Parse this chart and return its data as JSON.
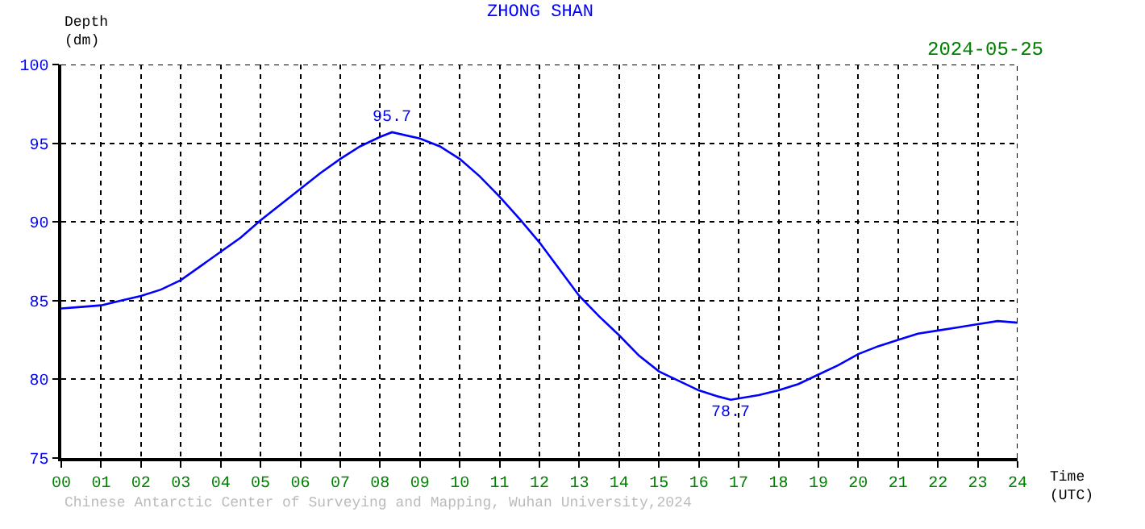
{
  "chart_data": {
    "type": "line",
    "title": "ZHONG SHAN",
    "subtitle": "2024-05-25",
    "xlabel": "Time\n(UTC)",
    "ylabel": "Depth\n(dm)",
    "x": [
      0,
      0.5,
      1,
      1.5,
      2,
      2.5,
      3,
      3.5,
      4,
      4.5,
      5,
      5.5,
      6,
      6.5,
      7,
      7.5,
      8,
      8.3,
      9,
      9.5,
      10,
      10.5,
      11,
      11.5,
      12,
      12.5,
      13,
      13.5,
      14,
      14.5,
      15,
      15.5,
      16,
      16.5,
      16.8,
      17.5,
      18,
      18.5,
      19,
      19.5,
      20,
      20.5,
      21,
      21.5,
      22,
      22.5,
      23,
      23.5,
      24
    ],
    "series": [
      {
        "color": "#0000ff",
        "values": [
          84.5,
          84.6,
          84.7,
          85.0,
          85.3,
          85.7,
          86.3,
          87.2,
          88.1,
          89.0,
          90.1,
          91.1,
          92.1,
          93.1,
          94.0,
          94.8,
          95.4,
          95.7,
          95.3,
          94.8,
          94.0,
          92.9,
          91.6,
          90.2,
          88.7,
          87.0,
          85.3,
          84.0,
          82.8,
          81.5,
          80.5,
          79.9,
          79.3,
          78.9,
          78.7,
          79.0,
          79.3,
          79.7,
          80.3,
          80.9,
          81.6,
          82.1,
          82.5,
          82.9,
          83.1,
          83.3,
          83.5,
          83.7,
          83.6
        ]
      }
    ],
    "annotations": [
      {
        "text": "95.7",
        "x": 8.3,
        "y": 95.7
      },
      {
        "text": "78.7",
        "x": 16.8,
        "y": 78.7
      },
      "Chinese Antarctic Center of Surveying and Mapping, Wuhan University,2024"
    ],
    "xlim": [
      0,
      24
    ],
    "ylim": [
      75,
      100
    ],
    "xticks": [
      {
        "value": 0,
        "label": "00"
      },
      {
        "value": 1,
        "label": "01"
      },
      {
        "value": 2,
        "label": "02"
      },
      {
        "value": 3,
        "label": "03"
      },
      {
        "value": 4,
        "label": "04"
      },
      {
        "value": 5,
        "label": "05"
      },
      {
        "value": 6,
        "label": "06"
      },
      {
        "value": 7,
        "label": "07"
      },
      {
        "value": 8,
        "label": "08"
      },
      {
        "value": 9,
        "label": "09"
      },
      10,
      11,
      12,
      13,
      14,
      15,
      16,
      17,
      18,
      19,
      20,
      21,
      22,
      23,
      24
    ],
    "yticks": [
      75,
      80,
      85,
      90,
      95,
      100
    ],
    "grid": true,
    "legend": false,
    "marker": "none",
    "line_style": "solid"
  }
}
